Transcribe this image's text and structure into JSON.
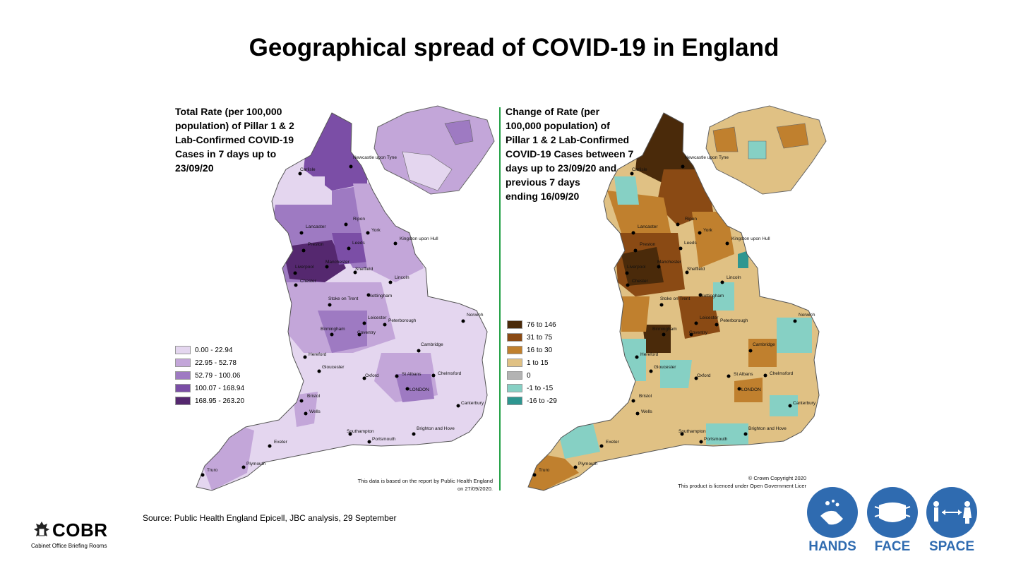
{
  "title": "Geographical spread of COVID-19 in England",
  "left_map": {
    "heading": "Total Rate (per 100,000\npopulation) of Pillar 1 & 2\nLab-Confirmed COVID-19\nCases in 7 days up to\n23/09/20",
    "legend": [
      {
        "label": "0.00 - 22.94",
        "color": "#e4d6ef"
      },
      {
        "label": "22.95 - 52.78",
        "color": "#c3a6d9"
      },
      {
        "label": "52.79 - 100.06",
        "color": "#9e7ac2"
      },
      {
        "label": "100.07 - 168.94",
        "color": "#7b4ea6"
      },
      {
        "label": "168.95 - 263.20",
        "color": "#55286f"
      }
    ],
    "note": "This data is based on the report by Public Health England\non 27/09/2020."
  },
  "right_map": {
    "heading": "Change of Rate (per\n100,000 population) of\nPillar 1 & 2  Lab-Confirmed\nCOVID-19 Cases between 7\ndays up to 23/09/20 and\nprevious 7 days\nending 16/09/20",
    "legend": [
      {
        "label": "76 to 146",
        "color": "#4a2a0a"
      },
      {
        "label": "31 to 75",
        "color": "#8a4a14"
      },
      {
        "label": "16 to 30",
        "color": "#c0802e"
      },
      {
        "label": "1 to 15",
        "color": "#e0c184"
      },
      {
        "label": "0",
        "color": "#b3b3b3"
      },
      {
        "label": "-1 to -15",
        "color": "#86d0c4"
      },
      {
        "label": "-16 to -29",
        "color": "#2e9690"
      }
    ],
    "note": "© Crown Copyright 2020\nThis product is licenced under Open Government Licer"
  },
  "cities": [
    "Newcastle upon Tyne",
    "Carlisle",
    "Lancaster",
    "Ripon",
    "York",
    "Kingston upon Hull",
    "Preston",
    "Leeds",
    "Liverpool",
    "Manchester",
    "Sheffield",
    "Lincoln",
    "Chester",
    "Stoke on Trent",
    "Nottingham",
    "Leicester",
    "Norwich",
    "Birmingham",
    "Coventry",
    "Peterborough",
    "Hereford",
    "Cambridge",
    "Gloucester",
    "Oxford",
    "St Albans",
    "Chelmsford",
    "LONDON",
    "Bristol",
    "Wells",
    "Canterbury",
    "Southampton",
    "Brighton and Hove",
    "Portsmouth",
    "Exeter",
    "Truro",
    "Plymouth"
  ],
  "source": "Source: Public Health England Epicell, JBC analysis, 29 September",
  "cobr": {
    "name": "COBR",
    "subtitle": "Cabinet Office Briefing Rooms"
  },
  "campaign": [
    {
      "label": "HANDS",
      "icon": "hands-wash-icon"
    },
    {
      "label": "FACE",
      "icon": "face-mask-icon"
    },
    {
      "label": "SPACE",
      "icon": "social-distance-icon"
    }
  ],
  "colors": {
    "divider": "#22a045",
    "campaign_blue": "#2f6bb0"
  }
}
